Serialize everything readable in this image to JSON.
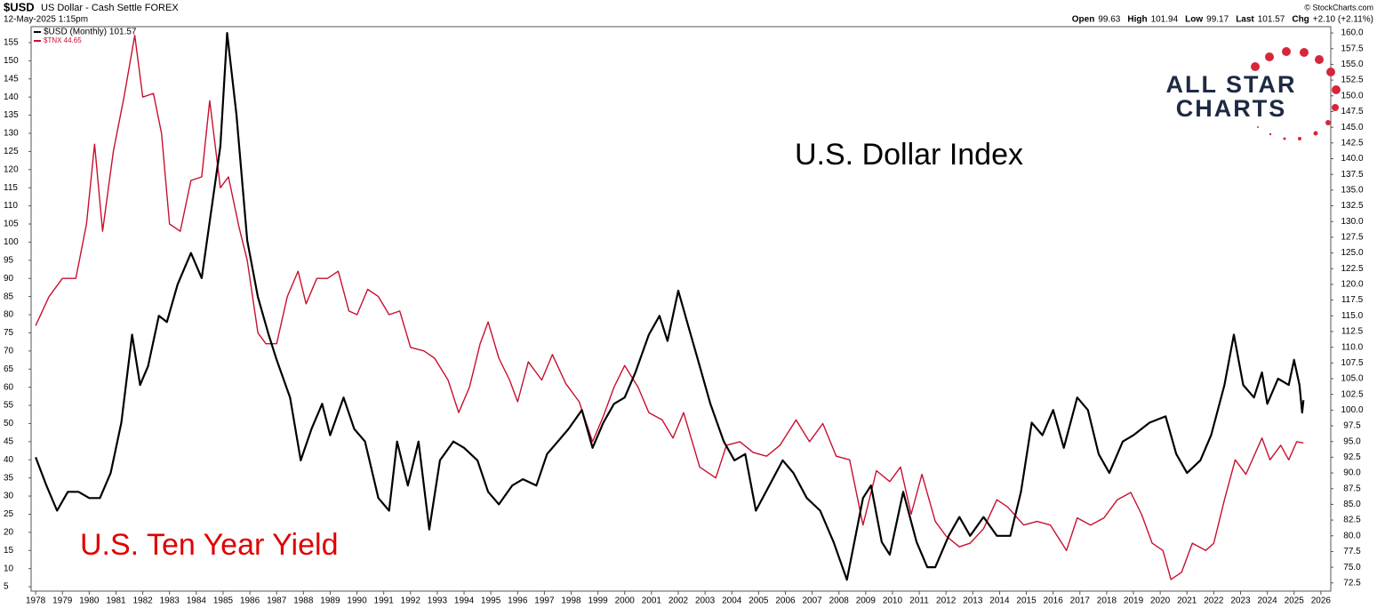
{
  "header": {
    "symbol": "$USD",
    "description": "US Dollar - Cash Settle FOREX",
    "date": "12-May-2025 1:15pm",
    "credit": "© StockCharts.com",
    "quote": [
      {
        "label": "Open",
        "value": "99.63"
      },
      {
        "label": "High",
        "value": "101.94"
      },
      {
        "label": "Low",
        "value": "99.17"
      },
      {
        "label": "Last",
        "value": "101.57"
      },
      {
        "label": "Chg",
        "value": "+2.10 (+2.11%)"
      }
    ]
  },
  "logo": {
    "line1": "ALL STAR",
    "line2": "CHARTS"
  },
  "chart_data": {
    "type": "line",
    "annotations": [
      "U.S. Dollar Index",
      "U.S. Ten Year Yield"
    ],
    "xlim": [
      1977.83,
      2026.37
    ],
    "xticks": [
      1978,
      1979,
      1980,
      1981,
      1982,
      1983,
      1984,
      1985,
      1986,
      1987,
      1988,
      1989,
      1990,
      1991,
      1992,
      1993,
      1994,
      1995,
      1996,
      1997,
      1998,
      1999,
      2000,
      2001,
      2002,
      2003,
      2004,
      2005,
      2006,
      2007,
      2008,
      2009,
      2010,
      2011,
      2012,
      2013,
      2014,
      2015,
      2016,
      2017,
      2018,
      2019,
      2020,
      2021,
      2022,
      2023,
      2024,
      2025,
      2026
    ],
    "ylim": [
      3.8,
      159.4
    ],
    "yticks": [
      5,
      10,
      15,
      20,
      25,
      30,
      35,
      40,
      45,
      50,
      55,
      60,
      65,
      70,
      75,
      80,
      85,
      90,
      95,
      100,
      105,
      110,
      115,
      120,
      125,
      130,
      135,
      140,
      145,
      150,
      155
    ],
    "y2lim": [
      71.2,
      161
    ],
    "y2ticks": [
      {
        "value": 72.5,
        "label": "72.5"
      },
      {
        "value": 75,
        "label": "75.0"
      },
      {
        "value": 77.5,
        "label": "77.5"
      },
      {
        "value": 80,
        "label": "80.0"
      },
      {
        "value": 82.5,
        "label": "82.5"
      },
      {
        "value": 85,
        "label": "85.0"
      },
      {
        "value": 87.5,
        "label": "87.5"
      },
      {
        "value": 90,
        "label": "90.0"
      },
      {
        "value": 92.5,
        "label": "92.5"
      },
      {
        "value": 95,
        "label": "95.0"
      },
      {
        "value": 97.5,
        "label": "97.5"
      },
      {
        "value": 100,
        "label": "100.0"
      },
      {
        "value": 102.5,
        "label": "102.5"
      },
      {
        "value": 105,
        "label": "105.0"
      },
      {
        "value": 107.5,
        "label": "107.5"
      },
      {
        "value": 110,
        "label": "110.0"
      },
      {
        "value": 112.5,
        "label": "112.5"
      },
      {
        "value": 115,
        "label": "115.0"
      },
      {
        "value": 117.5,
        "label": "117.5"
      },
      {
        "value": 120,
        "label": "120.0"
      },
      {
        "value": 122.5,
        "label": "122.5"
      },
      {
        "value": 125,
        "label": "125.0"
      },
      {
        "value": 127.5,
        "label": "127.5"
      },
      {
        "value": 130,
        "label": "130.0"
      },
      {
        "value": 132.5,
        "label": "132.5"
      },
      {
        "value": 135,
        "label": "135.0"
      },
      {
        "value": 137.5,
        "label": "137.5"
      },
      {
        "value": 140,
        "label": "140.0"
      },
      {
        "value": 142.5,
        "label": "142.5"
      },
      {
        "value": 145,
        "label": "145.0"
      },
      {
        "value": 147.5,
        "label": "147.5"
      },
      {
        "value": 150,
        "label": "150.0"
      },
      {
        "value": 152.5,
        "label": "152.5"
      },
      {
        "value": 155,
        "label": "155.0"
      },
      {
        "value": 157.5,
        "label": "157.5"
      },
      {
        "value": 160,
        "label": "160.0"
      }
    ],
    "grid": false,
    "series": [
      {
        "name": "$USD (Monthly) 101.57",
        "color": "#000000",
        "axis": "y2",
        "x": [
          1978.0,
          1978.4,
          1978.8,
          1979.2,
          1979.6,
          1980.0,
          1980.4,
          1980.8,
          1981.2,
          1981.6,
          1981.9,
          1982.2,
          1982.6,
          1982.9,
          1983.3,
          1983.8,
          1984.2,
          1984.6,
          1984.9,
          1985.15,
          1985.5,
          1985.9,
          1986.3,
          1986.7,
          1987.0,
          1987.5,
          1987.9,
          1988.3,
          1988.7,
          1989.0,
          1989.5,
          1989.9,
          1990.3,
          1990.8,
          1991.2,
          1991.5,
          1991.9,
          1992.3,
          1992.7,
          1993.1,
          1993.6,
          1994.0,
          1994.5,
          1994.9,
          1995.3,
          1995.8,
          1996.2,
          1996.7,
          1997.1,
          1997.5,
          1997.9,
          1998.4,
          1998.8,
          1999.2,
          1999.6,
          2000.0,
          2000.4,
          2000.9,
          2001.3,
          2001.6,
          2002.0,
          2002.4,
          2002.8,
          2003.2,
          2003.7,
          2004.1,
          2004.5,
          2004.9,
          2005.4,
          2005.9,
          2006.3,
          2006.8,
          2007.3,
          2007.8,
          2008.3,
          2008.9,
          2009.2,
          2009.6,
          2009.9,
          2010.4,
          2010.9,
          2011.3,
          2011.6,
          2012.1,
          2012.5,
          2012.9,
          2013.4,
          2013.9,
          2014.4,
          2014.8,
          2015.2,
          2015.6,
          2016.0,
          2016.4,
          2016.9,
          2017.3,
          2017.7,
          2018.1,
          2018.6,
          2019.0,
          2019.6,
          2020.2,
          2020.6,
          2021.0,
          2021.5,
          2021.9,
          2022.4,
          2022.75,
          2023.1,
          2023.5,
          2023.8,
          2024.0,
          2024.4,
          2024.8,
          2025.0,
          2025.2,
          2025.3,
          2025.35
        ],
        "values": [
          92.5,
          88,
          84,
          87,
          87,
          86,
          86,
          90,
          98,
          112,
          104,
          107,
          115,
          114,
          120,
          125,
          121,
          133,
          142,
          160,
          147,
          127,
          118,
          112,
          108,
          102,
          92,
          97,
          101,
          96,
          102,
          97,
          95,
          86,
          84,
          95,
          88,
          95,
          81,
          92,
          95,
          94,
          92,
          87,
          85,
          88,
          89,
          88,
          93,
          95,
          97,
          100,
          94,
          98,
          101,
          102,
          106,
          112,
          115,
          111,
          119,
          113,
          107,
          101,
          95,
          92,
          93,
          84,
          88,
          92,
          90,
          86,
          84,
          79,
          73,
          86,
          88,
          79,
          77,
          87,
          79,
          75,
          75,
          80,
          83,
          80,
          83,
          80,
          80,
          87,
          98,
          96,
          100,
          94,
          102,
          100,
          93,
          90,
          95,
          96,
          98,
          99,
          93,
          90,
          92,
          96,
          104,
          112,
          104,
          102,
          106,
          101,
          105,
          104,
          108,
          104,
          99.6,
          101.57
        ]
      },
      {
        "name": "$TNX 44.65",
        "color": "#c8102e",
        "axis": "y",
        "x": [
          1978.0,
          1978.5,
          1979.0,
          1979.5,
          1979.9,
          1980.2,
          1980.5,
          1980.9,
          1981.3,
          1981.7,
          1982.0,
          1982.4,
          1982.7,
          1983.0,
          1983.4,
          1983.8,
          1984.2,
          1984.5,
          1984.9,
          1985.2,
          1985.6,
          1985.9,
          1986.3,
          1986.6,
          1987.0,
          1987.4,
          1987.8,
          1988.1,
          1988.5,
          1988.9,
          1989.3,
          1989.7,
          1990.0,
          1990.4,
          1990.8,
          1991.2,
          1991.6,
          1992.0,
          1992.5,
          1992.9,
          1993.4,
          1993.8,
          1994.2,
          1994.6,
          1994.9,
          1995.3,
          1995.7,
          1996.0,
          1996.4,
          1996.9,
          1997.3,
          1997.8,
          1998.3,
          1998.8,
          1999.2,
          1999.6,
          2000.0,
          2000.5,
          2000.9,
          2001.4,
          2001.8,
          2002.2,
          2002.8,
          2003.4,
          2003.8,
          2004.3,
          2004.8,
          2005.3,
          2005.8,
          2006.4,
          2006.9,
          2007.4,
          2007.9,
          2008.4,
          2008.9,
          2009.4,
          2009.9,
          2010.3,
          2010.7,
          2011.1,
          2011.6,
          2012.0,
          2012.5,
          2012.9,
          2013.4,
          2013.9,
          2014.3,
          2014.9,
          2015.4,
          2015.9,
          2016.5,
          2016.9,
          2017.4,
          2017.9,
          2018.4,
          2018.9,
          2019.3,
          2019.7,
          2020.1,
          2020.4,
          2020.8,
          2021.2,
          2021.7,
          2022.0,
          2022.4,
          2022.8,
          2023.2,
          2023.8,
          2024.1,
          2024.5,
          2024.8,
          2025.1,
          2025.35
        ],
        "values": [
          77,
          85,
          90,
          90,
          105,
          127,
          103,
          125,
          140,
          157,
          140,
          141,
          130,
          105,
          103,
          117,
          118,
          139,
          115,
          118,
          104,
          95,
          75,
          72,
          72,
          85,
          92,
          83,
          90,
          90,
          92,
          81,
          80,
          87,
          85,
          80,
          81,
          71,
          70,
          68,
          62,
          53,
          60,
          72,
          78,
          68,
          62,
          56,
          67,
          62,
          69,
          61,
          56,
          45,
          52,
          60,
          66,
          60,
          53,
          51,
          46,
          53,
          38,
          35,
          44,
          45,
          42,
          41,
          44,
          51,
          45,
          50,
          41,
          40,
          22,
          37,
          34,
          38,
          25,
          36,
          23,
          19,
          16,
          17,
          21,
          29,
          27,
          22,
          23,
          22,
          15,
          24,
          22,
          24,
          29,
          31,
          25,
          17,
          15,
          7,
          9,
          17,
          15,
          17,
          29,
          40,
          36,
          46,
          40,
          44,
          40,
          45,
          44.65
        ]
      }
    ]
  }
}
